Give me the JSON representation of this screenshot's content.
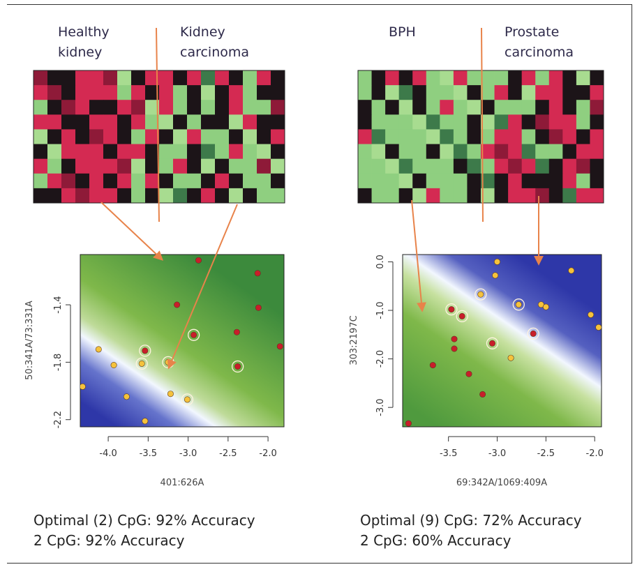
{
  "panels": [
    {
      "group_labels": [
        "Healthy\nkidney",
        "Kidney\ncarcinoma"
      ],
      "accuracy_lines": [
        "Optimal (2) CpG: 92% Accuracy",
        "2 CpG: 92% Accuracy"
      ]
    },
    {
      "group_labels": [
        "BPH",
        "Prostate\ncarcinoma"
      ],
      "accuracy_lines": [
        "Optimal (9) CpG: 72% Accuracy",
        "2 CpG: 60% Accuracy"
      ]
    }
  ],
  "colors": {
    "heat_red": "#d42a52",
    "heat_darkred": "#8e1a38",
    "heat_black": "#1c1418",
    "heat_darkgreen": "#3d7a4a",
    "heat_green": "#8fcf80",
    "heat_lightgreen": "#a8dc90",
    "arrow": "#e8834a",
    "field_green": "#7fb84a",
    "field_blue": "#2e37a8",
    "point_red": "#c81e2a",
    "point_yellow": "#f5c23c"
  },
  "chart_data": [
    {
      "type": "heatmap",
      "name": "kidney methylation heatmap",
      "grid_rows": 9,
      "grid_cols": 18,
      "groups": [
        "Healthy kidney",
        "Kidney carcinoma"
      ],
      "cells": [
        "rkkrrrgkrrkrgrkgrk",
        "rrkrrrgrkrgkgkrgkk",
        "gkrrkkrrgrgkgkrggr",
        "rrkkrrkrggkgkkgrkk",
        "gkrkrrkgrkgrggkgkr",
        "kgrrrkrrkggkggrggk",
        "rgkrrrrgkgrkgkggrg",
        "grrkrkrgrkggkrkggk",
        "kkrrrrkgkggkrkgkgg"
      ]
    },
    {
      "type": "heatmap",
      "name": "prostate methylation heatmap",
      "grid_rows": 9,
      "grid_cols": 18,
      "groups": [
        "BPH",
        "Prostate carcinoma"
      ],
      "cells": [
        "gkrkrggrgggkrgrkgk",
        "gkggkgggkgrkgrrkkr",
        "kgkgkgrggkgggkrkgr",
        "kgggggggkggrkrrrgk",
        "rgggggggkgrrgkrrkr",
        "ggkggkgggrrrgggkrr",
        "gggggggkggrrrgkrrk",
        "ggggkgggkgkrkkkrgk",
        "kggkgrggkgkrrrkgrr"
      ]
    },
    {
      "type": "scatter",
      "xlabel": "401:626A",
      "ylabel": "50:341A/73:331A",
      "xlim": [
        -4.35,
        -1.8
      ],
      "ylim": [
        -2.25,
        -1.05
      ],
      "xticks": [
        -4.0,
        -3.5,
        -3.0,
        -2.5,
        -2.0
      ],
      "xtick_labels": [
        "-4.0",
        "-3.5",
        "-3.0",
        "-2.5",
        "-2.0"
      ],
      "yticks": [
        -1.4,
        -1.8,
        -2.2
      ],
      "ytick_labels": [
        "-1.4",
        "-1.8",
        "-2.2"
      ],
      "series": [
        {
          "name": "Healthy kidney",
          "color": "#f5c23c",
          "points": [
            [
              -4.32,
              -1.97
            ],
            [
              -4.12,
              -1.71
            ],
            [
              -3.93,
              -1.82
            ],
            [
              -3.77,
              -2.04
            ],
            [
              -3.58,
              -1.81
            ],
            [
              -3.54,
              -2.21
            ],
            [
              -3.25,
              -1.8
            ],
            [
              -3.22,
              -2.02
            ],
            [
              -3.01,
              -2.06
            ]
          ],
          "circled": [
            [
              -3.58,
              -1.81
            ],
            [
              -3.25,
              -1.8
            ],
            [
              -3.01,
              -2.06
            ]
          ]
        },
        {
          "name": "Kidney carcinoma",
          "color": "#c81e2a",
          "points": [
            [
              -2.87,
              -1.09
            ],
            [
              -3.14,
              -1.4
            ],
            [
              -2.93,
              -1.61
            ],
            [
              -3.54,
              -1.72
            ],
            [
              -2.39,
              -1.59
            ],
            [
              -2.38,
              -1.83
            ],
            [
              -2.13,
              -1.18
            ],
            [
              -2.12,
              -1.42
            ],
            [
              -1.85,
              -1.69
            ]
          ],
          "circled": [
            [
              -2.93,
              -1.61
            ],
            [
              -3.54,
              -1.72
            ],
            [
              -2.38,
              -1.83
            ]
          ]
        }
      ]
    },
    {
      "type": "scatter",
      "xlabel": "69:342A/1069:409A",
      "ylabel": "303:2197C",
      "xlim": [
        -3.97,
        -1.93
      ],
      "ylim": [
        -3.4,
        0.15
      ],
      "xticks": [
        -3.5,
        -3.0,
        -2.5,
        -2.0
      ],
      "xtick_labels": [
        "-3.5",
        "-3.0",
        "-2.5",
        "-2.0"
      ],
      "yticks": [
        0.0,
        -1.0,
        -2.0,
        -3.0
      ],
      "ytick_labels": [
        "0.0",
        "-1.0",
        "-2.0",
        "-3.0"
      ],
      "series": [
        {
          "name": "BPH",
          "color": "#f5c23c",
          "points": [
            [
              -3.0,
              0.0
            ],
            [
              -3.02,
              -0.28
            ],
            [
              -3.17,
              -0.67
            ],
            [
              -2.78,
              -0.88
            ],
            [
              -2.55,
              -0.88
            ],
            [
              -2.5,
              -0.93
            ],
            [
              -2.24,
              -0.18
            ],
            [
              -2.04,
              -1.09
            ],
            [
              -1.96,
              -1.35
            ],
            [
              -2.86,
              -1.98
            ]
          ],
          "circled": [
            [
              -3.17,
              -0.67
            ],
            [
              -2.78,
              -0.88
            ]
          ]
        },
        {
          "name": "Prostate carcinoma",
          "color": "#c81e2a",
          "points": [
            [
              -3.91,
              -3.33
            ],
            [
              -3.66,
              -2.13
            ],
            [
              -3.47,
              -0.98
            ],
            [
              -3.36,
              -1.12
            ],
            [
              -3.44,
              -1.59
            ],
            [
              -3.44,
              -1.79
            ],
            [
              -3.29,
              -2.31
            ],
            [
              -3.05,
              -1.68
            ],
            [
              -2.63,
              -1.48
            ],
            [
              -3.15,
              -2.73
            ]
          ],
          "circled": [
            [
              -3.47,
              -0.98
            ],
            [
              -3.36,
              -1.12
            ],
            [
              -3.05,
              -1.68
            ],
            [
              -2.63,
              -1.48
            ]
          ]
        }
      ]
    }
  ]
}
